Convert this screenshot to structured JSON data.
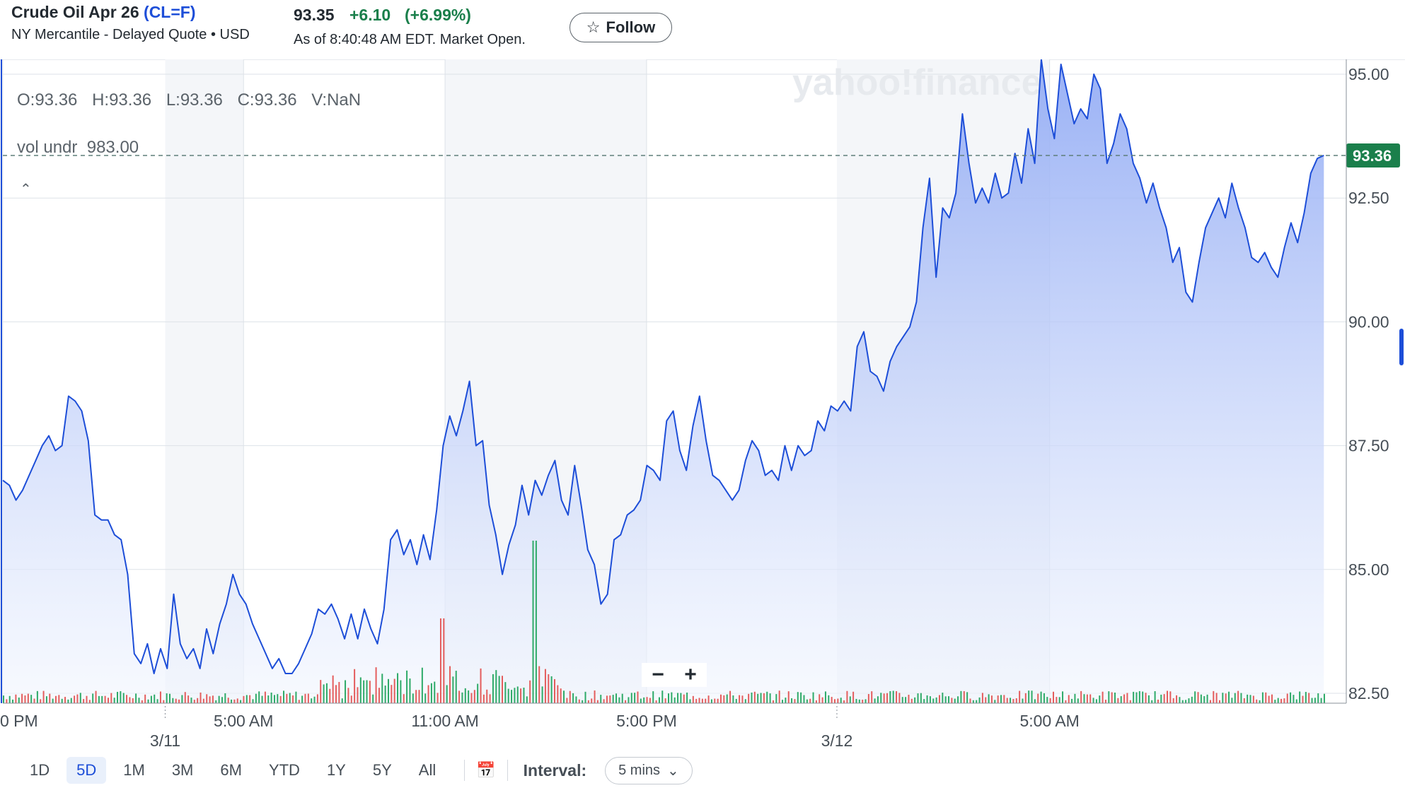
{
  "header": {
    "instrument": "Crude Oil Apr 26",
    "ticker": "(CL=F)",
    "exchange_line": "NY Mercantile - Delayed Quote • USD",
    "price": "93.35",
    "change": "+6.10",
    "change_pct": "(+6.99%)",
    "as_of": "As of 8:40:48 AM EDT. Market Open.",
    "follow_label": "Follow",
    "follow_icon": "star-outline-icon"
  },
  "legend": {
    "o": "O:93.36",
    "h": "H:93.36",
    "l": "L:93.36",
    "c": "C:93.36",
    "v": "V:NaN",
    "vol_label": "vol undr",
    "vol_value": "983.00"
  },
  "colors": {
    "line": "#1d4ed8",
    "area_top": "#8ea8f4",
    "area_bottom": "#f2f6fe",
    "vol_up": "#2eaa68",
    "vol_down": "#e45d5d",
    "last_price_tag": "#1a7f4b",
    "grid": "#dde2e8"
  },
  "watermark": "yahoo!finance",
  "zoom": {
    "minus": "−",
    "plus": "+"
  },
  "chart_data": {
    "type": "area",
    "y_ticks": [
      "95.00",
      "92.50",
      "90.00",
      "87.50",
      "85.00",
      "82.50"
    ],
    "ylim": [
      82.3,
      95.3
    ],
    "last_price_label": "93.36",
    "last_price": 93.36,
    "x_tick_labels": [
      {
        "label": "0 PM",
        "t": 0
      },
      {
        "label": "5:00 AM",
        "t": 86
      },
      {
        "label": "11:00 AM",
        "t": 158
      },
      {
        "label": "5:00 PM",
        "t": 230
      },
      {
        "label": "5:00 AM",
        "t": 374
      }
    ],
    "date_labels": [
      {
        "label": "3/11",
        "t": 58
      },
      {
        "label": "3/12",
        "t": 298
      }
    ],
    "t_range": [
      0,
      480
    ],
    "series": [
      {
        "values": [
          86.8,
          86.7,
          86.4,
          86.6,
          86.9,
          87.2,
          87.5,
          87.7,
          87.4,
          87.5,
          88.5,
          88.4,
          88.2,
          87.6,
          86.1,
          86.0,
          86.0,
          85.7,
          85.6,
          84.9,
          83.3,
          83.1,
          83.5,
          82.9,
          83.4,
          83.0,
          84.5,
          83.5,
          83.2,
          83.4,
          83.0,
          83.8,
          83.3,
          83.9,
          84.3,
          84.9,
          84.5,
          84.3,
          83.9,
          83.6,
          83.3,
          83.0,
          83.2,
          82.9,
          82.9,
          83.1,
          83.4,
          83.7,
          84.2,
          84.1,
          84.3,
          84.0,
          83.6,
          84.1,
          83.6,
          84.2,
          83.8,
          83.5,
          84.2,
          85.6,
          85.8,
          85.3,
          85.6,
          85.1,
          85.7,
          85.2,
          86.2,
          87.5,
          88.1,
          87.7,
          88.2,
          88.8,
          87.5,
          87.6,
          86.3,
          85.7,
          84.9,
          85.5,
          85.9,
          86.7,
          86.1,
          86.8,
          86.5,
          86.9,
          87.2,
          86.4,
          86.1,
          87.1,
          86.3,
          85.4,
          85.1,
          84.3,
          84.5,
          85.6,
          85.7,
          86.1,
          86.2,
          86.4,
          87.1,
          87.0,
          86.8,
          88.0,
          88.2,
          87.4,
          87.0,
          87.9,
          88.5,
          87.6,
          86.9,
          86.8,
          86.6,
          86.4,
          86.6,
          87.2,
          87.6,
          87.4,
          86.9,
          87.0,
          86.8,
          87.5,
          87.0,
          87.5,
          87.3,
          87.4,
          88.0,
          87.8,
          88.3,
          88.2,
          88.4,
          88.2,
          89.5,
          89.8,
          89.0,
          88.9,
          88.6,
          89.2,
          89.5,
          89.7,
          89.9,
          90.4,
          91.9,
          92.9,
          90.9,
          92.3,
          92.1,
          92.6,
          94.2,
          93.2,
          92.4,
          92.7,
          92.4,
          93.0,
          92.5,
          92.6,
          93.4,
          92.8,
          93.9,
          93.2,
          95.3,
          94.3,
          93.7,
          95.2,
          94.6,
          94.0,
          94.3,
          94.1,
          95.0,
          94.7,
          93.2,
          93.6,
          94.2,
          93.9,
          93.2,
          92.9,
          92.4,
          92.8,
          92.3,
          91.9,
          91.2,
          91.5,
          90.6,
          90.4,
          91.2,
          91.9,
          92.2,
          92.5,
          92.1,
          92.8,
          92.3,
          91.9,
          91.3,
          91.2,
          91.4,
          91.1,
          90.9,
          91.5,
          92.0,
          91.6,
          92.2,
          93.0,
          93.3,
          93.36
        ]
      }
    ],
    "volume": {
      "note": "intraday volume bars along bottom",
      "peaks_t": [
        157,
        190
      ]
    }
  },
  "range_bar": {
    "buttons": [
      "1D",
      "5D",
      "1M",
      "3M",
      "6M",
      "YTD",
      "1Y",
      "5Y",
      "All"
    ],
    "active": "5D",
    "calendar_icon": "calendar-icon",
    "interval_label": "Interval:",
    "interval_value": "5 mins",
    "interval_chevron": "chevron-down-icon"
  }
}
